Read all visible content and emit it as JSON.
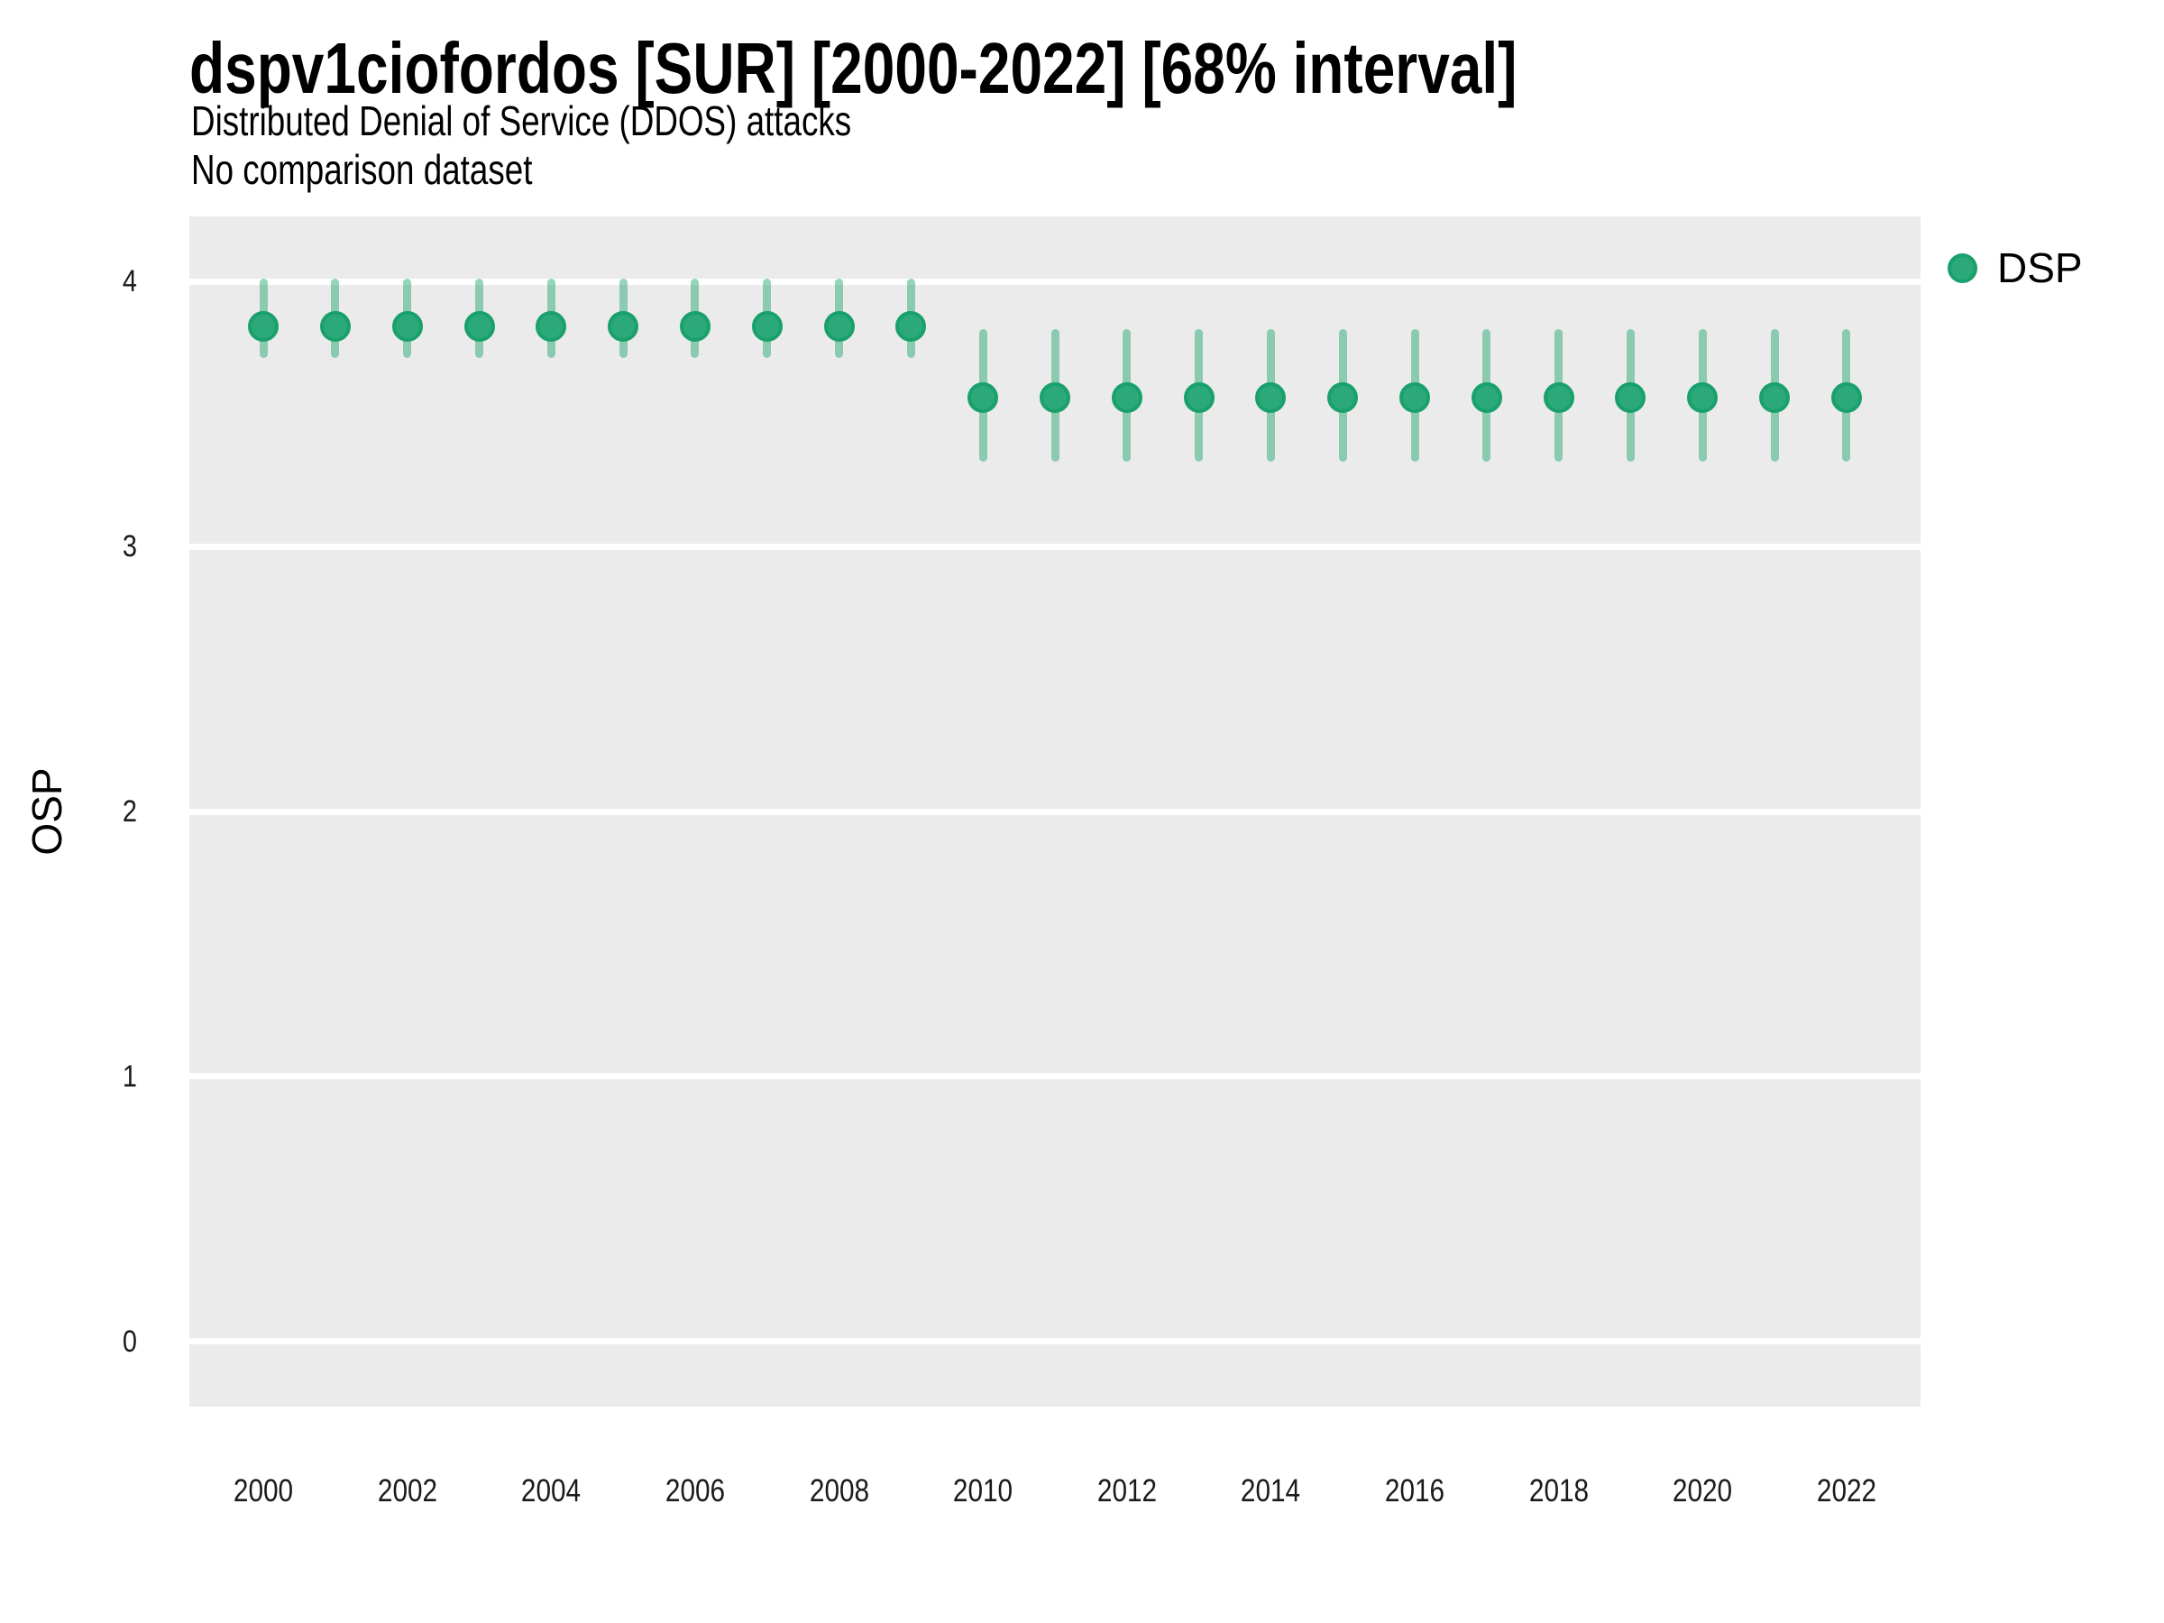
{
  "header": {
    "title": "dspv1ciofordos [SUR] [2000-2022] [68% interval]",
    "subtitle": "Distributed Denial of Service (DDOS) attacks",
    "note": "No comparison dataset"
  },
  "legend": {
    "position": "right",
    "items": [
      {
        "label": "DSP",
        "marker": "circle-icon",
        "color": "#2CA97A"
      }
    ]
  },
  "axes": {
    "y_title": "OSP",
    "y_ticks": [
      0,
      1,
      2,
      3,
      4
    ],
    "x_ticks": [
      2000,
      2002,
      2004,
      2006,
      2008,
      2010,
      2012,
      2014,
      2016,
      2018,
      2020,
      2022
    ]
  },
  "chart_data": {
    "type": "scatter",
    "subtype": "pointrange",
    "title": "dspv1ciofordos [SUR] [2000-2022] [68% interval]",
    "subtitle": "Distributed Denial of Service (DDOS) attacks",
    "note": "No comparison dataset",
    "interval": "68%",
    "xlabel": "",
    "ylabel": "OSP",
    "xlim": [
      1998.97,
      2023.03
    ],
    "ylim": [
      -0.245,
      4.245
    ],
    "grid": "major-horizontal-only",
    "legend_position": "right",
    "x": [
      2000,
      2001,
      2002,
      2003,
      2004,
      2005,
      2006,
      2007,
      2008,
      2009,
      2010,
      2011,
      2012,
      2013,
      2014,
      2015,
      2016,
      2017,
      2018,
      2019,
      2020,
      2021,
      2022
    ],
    "series": [
      {
        "name": "DSP",
        "color": "#2CA97A",
        "mid": [
          3.83,
          3.83,
          3.83,
          3.83,
          3.83,
          3.83,
          3.83,
          3.83,
          3.83,
          3.83,
          3.56,
          3.56,
          3.56,
          3.56,
          3.56,
          3.56,
          3.56,
          3.56,
          3.56,
          3.56,
          3.56,
          3.56,
          3.56
        ],
        "lo": [
          3.71,
          3.71,
          3.71,
          3.71,
          3.71,
          3.71,
          3.71,
          3.71,
          3.71,
          3.71,
          3.32,
          3.32,
          3.32,
          3.32,
          3.32,
          3.32,
          3.32,
          3.32,
          3.32,
          3.32,
          3.32,
          3.32,
          3.32
        ],
        "hi": [
          4.01,
          4.01,
          4.01,
          4.01,
          4.01,
          4.01,
          4.01,
          4.01,
          4.01,
          4.01,
          3.82,
          3.82,
          3.82,
          3.82,
          3.82,
          3.82,
          3.82,
          3.82,
          3.82,
          3.82,
          3.82,
          3.82,
          3.82
        ]
      }
    ]
  },
  "colors": {
    "point_fill": "#2CA97A",
    "point_stroke": "#19A06C",
    "interval_line": "rgba(20,165,105,0.45)",
    "panel_bg": "#EBEBEB",
    "grid": "#FFFFFF",
    "text": "#000000"
  }
}
